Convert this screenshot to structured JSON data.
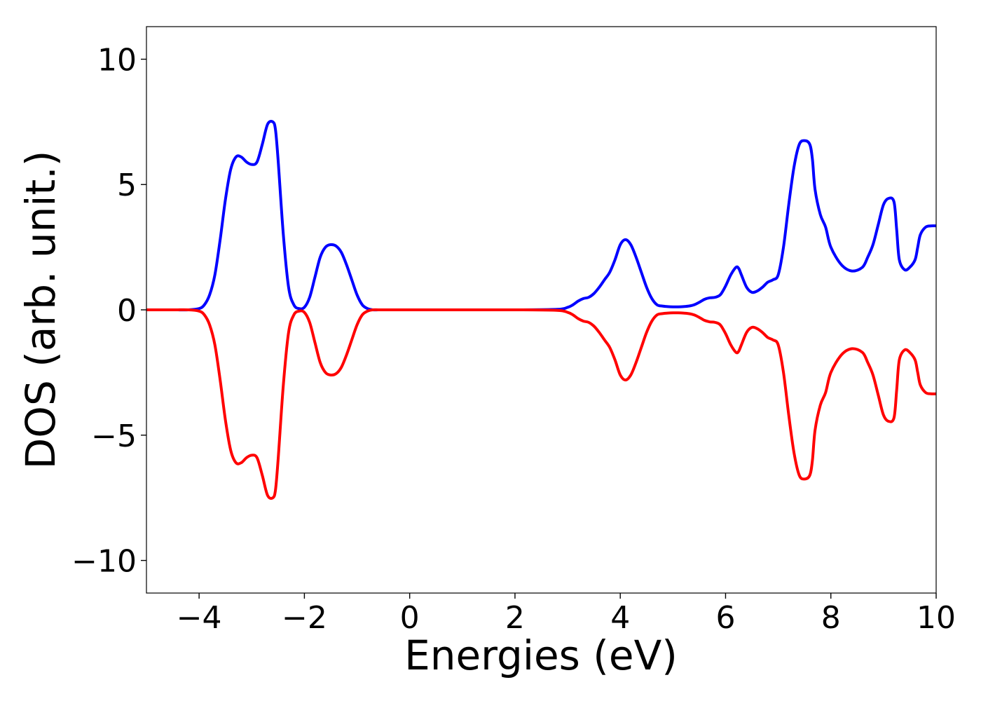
{
  "chart_data": {
    "type": "line",
    "title": "",
    "xlabel": "Energies (eV)",
    "ylabel": "DOS (arb. unit.)",
    "xlim": [
      -5,
      10
    ],
    "ylim": [
      -11.3,
      11.3
    ],
    "xticks": [
      -4,
      -2,
      0,
      2,
      4,
      6,
      8,
      10
    ],
    "xtick_labels": [
      "−4",
      "−2",
      "0",
      "2",
      "4",
      "6",
      "8",
      "10"
    ],
    "yticks": [
      10,
      5,
      0,
      -5,
      -10
    ],
    "ytick_labels": [
      "10",
      "5",
      "0",
      "−5",
      "−10"
    ],
    "grid": false,
    "legend": "none",
    "series": [
      {
        "color": "#0000ff",
        "x": [
          -5,
          -4.5,
          -4.2,
          -4.0,
          -3.9,
          -3.8,
          -3.7,
          -3.6,
          -3.5,
          -3.4,
          -3.3,
          -3.2,
          -3.1,
          -3.0,
          -2.9,
          -2.8,
          -2.7,
          -2.6,
          -2.55,
          -2.5,
          -2.4,
          -2.3,
          -2.2,
          -2.1,
          -2.0,
          -1.9,
          -1.8,
          -1.7,
          -1.6,
          -1.5,
          -1.4,
          -1.3,
          -1.2,
          -1.1,
          -1.0,
          -0.9,
          -0.8,
          -0.7,
          -0.6,
          -0.5,
          -0.3,
          0,
          1,
          2,
          2.8,
          3.0,
          3.1,
          3.2,
          3.3,
          3.4,
          3.5,
          3.6,
          3.7,
          3.8,
          3.9,
          4.0,
          4.1,
          4.2,
          4.3,
          4.4,
          4.5,
          4.6,
          4.7,
          4.8,
          4.9,
          5.0,
          5.1,
          5.2,
          5.3,
          5.4,
          5.5,
          5.6,
          5.7,
          5.8,
          5.9,
          6.0,
          6.1,
          6.2,
          6.25,
          6.3,
          6.4,
          6.5,
          6.6,
          6.7,
          6.8,
          6.9,
          7.0,
          7.1,
          7.2,
          7.3,
          7.4,
          7.5,
          7.6,
          7.65,
          7.7,
          7.8,
          7.9,
          8.0,
          8.2,
          8.4,
          8.6,
          8.7,
          8.8,
          8.9,
          9.0,
          9.1,
          9.2,
          9.25,
          9.3,
          9.4,
          9.5,
          9.6,
          9.65,
          9.7,
          9.8,
          9.9,
          10.0
        ],
        "values": [
          0,
          0,
          0,
          0.05,
          0.2,
          0.6,
          1.4,
          2.8,
          4.4,
          5.6,
          6.1,
          6.1,
          5.9,
          5.8,
          5.9,
          6.6,
          7.4,
          7.5,
          7.2,
          6.0,
          3.0,
          0.9,
          0.2,
          0.05,
          0.1,
          0.5,
          1.3,
          2.1,
          2.5,
          2.6,
          2.55,
          2.3,
          1.8,
          1.2,
          0.6,
          0.2,
          0.05,
          0,
          0,
          0,
          0,
          0,
          0,
          0,
          0.02,
          0.1,
          0.2,
          0.35,
          0.45,
          0.5,
          0.65,
          0.9,
          1.2,
          1.5,
          2.0,
          2.6,
          2.8,
          2.6,
          2.1,
          1.5,
          0.9,
          0.45,
          0.2,
          0.15,
          0.13,
          0.12,
          0.12,
          0.13,
          0.15,
          0.2,
          0.3,
          0.42,
          0.48,
          0.5,
          0.6,
          0.95,
          1.4,
          1.7,
          1.65,
          1.4,
          0.9,
          0.7,
          0.75,
          0.9,
          1.1,
          1.2,
          1.4,
          2.5,
          4.2,
          5.7,
          6.6,
          6.75,
          6.6,
          6.0,
          4.8,
          3.8,
          3.3,
          2.5,
          1.8,
          1.55,
          1.7,
          2.1,
          2.6,
          3.4,
          4.2,
          4.45,
          4.3,
          3.2,
          2.0,
          1.6,
          1.7,
          2.0,
          2.5,
          3.0,
          3.3,
          3.35,
          3.35
        ]
      },
      {
        "color": "#ff0000",
        "x": [
          -5,
          -4.5,
          -4.2,
          -4.0,
          -3.9,
          -3.8,
          -3.7,
          -3.6,
          -3.5,
          -3.4,
          -3.3,
          -3.2,
          -3.1,
          -3.0,
          -2.9,
          -2.8,
          -2.7,
          -2.6,
          -2.55,
          -2.5,
          -2.4,
          -2.3,
          -2.2,
          -2.1,
          -2.0,
          -1.9,
          -1.8,
          -1.7,
          -1.6,
          -1.5,
          -1.4,
          -1.3,
          -1.2,
          -1.1,
          -1.0,
          -0.9,
          -0.8,
          -0.7,
          -0.6,
          -0.5,
          -0.3,
          0,
          1,
          2,
          2.8,
          3.0,
          3.1,
          3.2,
          3.3,
          3.4,
          3.5,
          3.6,
          3.7,
          3.8,
          3.9,
          4.0,
          4.1,
          4.2,
          4.3,
          4.4,
          4.5,
          4.6,
          4.7,
          4.8,
          4.9,
          5.0,
          5.1,
          5.2,
          5.3,
          5.4,
          5.5,
          5.6,
          5.7,
          5.8,
          5.9,
          6.0,
          6.1,
          6.2,
          6.25,
          6.3,
          6.4,
          6.5,
          6.6,
          6.7,
          6.8,
          6.9,
          7.0,
          7.1,
          7.2,
          7.3,
          7.4,
          7.5,
          7.6,
          7.65,
          7.7,
          7.8,
          7.9,
          8.0,
          8.2,
          8.4,
          8.6,
          8.7,
          8.8,
          8.9,
          9.0,
          9.1,
          9.2,
          9.25,
          9.3,
          9.4,
          9.5,
          9.6,
          9.65,
          9.7,
          9.8,
          9.9,
          10.0
        ],
        "values": [
          0,
          0,
          0,
          -0.05,
          -0.2,
          -0.6,
          -1.4,
          -2.8,
          -4.4,
          -5.6,
          -6.1,
          -6.1,
          -5.9,
          -5.8,
          -5.9,
          -6.6,
          -7.4,
          -7.5,
          -7.2,
          -6.0,
          -3.0,
          -0.9,
          -0.2,
          -0.05,
          -0.1,
          -0.5,
          -1.3,
          -2.1,
          -2.5,
          -2.6,
          -2.55,
          -2.3,
          -1.8,
          -1.2,
          -0.6,
          -0.2,
          -0.05,
          0,
          0,
          0,
          0,
          0,
          0,
          0,
          -0.02,
          -0.1,
          -0.2,
          -0.35,
          -0.45,
          -0.5,
          -0.65,
          -0.9,
          -1.2,
          -1.5,
          -2.0,
          -2.6,
          -2.8,
          -2.6,
          -2.1,
          -1.5,
          -0.9,
          -0.45,
          -0.2,
          -0.15,
          -0.13,
          -0.12,
          -0.12,
          -0.13,
          -0.15,
          -0.2,
          -0.3,
          -0.42,
          -0.48,
          -0.5,
          -0.6,
          -0.95,
          -1.4,
          -1.7,
          -1.65,
          -1.4,
          -0.9,
          -0.7,
          -0.75,
          -0.9,
          -1.1,
          -1.2,
          -1.4,
          -2.5,
          -4.2,
          -5.7,
          -6.6,
          -6.75,
          -6.6,
          -6.0,
          -4.8,
          -3.8,
          -3.3,
          -2.5,
          -1.8,
          -1.55,
          -1.7,
          -2.1,
          -2.6,
          -3.4,
          -4.2,
          -4.45,
          -4.3,
          -3.2,
          -2.0,
          -1.6,
          -1.7,
          -2.0,
          -2.5,
          -3.0,
          -3.3,
          -3.35,
          -3.35
        ]
      }
    ]
  }
}
